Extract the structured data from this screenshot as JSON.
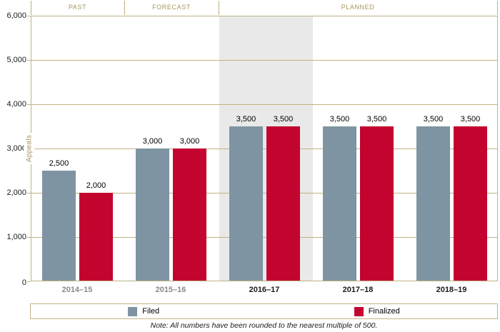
{
  "bands": [
    {
      "label": "PAST"
    },
    {
      "label": "FORECAST"
    },
    {
      "label": "PLANNED"
    }
  ],
  "y_axis": {
    "title": "Appeals",
    "ticks": [
      "6,000",
      "5,000",
      "4,000",
      "3,000",
      "2,000",
      "1,000",
      "0"
    ]
  },
  "legend": [
    {
      "label": "Filed",
      "color": "#7E94A2"
    },
    {
      "label": "Finalized",
      "color": "#C3042F"
    }
  ],
  "note": "Note: All numbers have been rounded to the nearest multiple of 500.",
  "colors": {
    "filed_bar": "#7E94A2",
    "finalized_bar": "#C3042F",
    "grid_and_border": "#BFB284",
    "band_text": "#A6965F",
    "highlight_shade": "#E9E9E9",
    "past_category_text": "#8A8A8A",
    "planned_category_text": "#1A1A1A"
  },
  "chart_data": {
    "type": "bar",
    "title": "",
    "categories": [
      "2014–15",
      "2015–16",
      "2016–17",
      "2017–18",
      "2018–19"
    ],
    "series": [
      {
        "name": "Filed",
        "color": "#7E94A2",
        "values": [
          2500,
          3000,
          3500,
          3500,
          3500
        ],
        "labels": [
          "2,500",
          "3,000",
          "3,500",
          "3,500",
          "3,500"
        ]
      },
      {
        "name": "Finalized",
        "color": "#C3042F",
        "values": [
          2000,
          3000,
          3500,
          3500,
          3500
        ],
        "labels": [
          "2,000",
          "3,000",
          "3,500",
          "3,500",
          "3,500"
        ]
      }
    ],
    "xlabel": "",
    "ylabel": "Appeals",
    "ylim": [
      0,
      6000
    ],
    "grid_interval": 1000,
    "grid": true,
    "legend_position": "bottom",
    "bands": [
      {
        "label": "PAST",
        "categories": [
          "2014–15"
        ]
      },
      {
        "label": "FORECAST",
        "categories": [
          "2015–16"
        ]
      },
      {
        "label": "PLANNED",
        "categories": [
          "2016–17",
          "2017–18",
          "2018–19"
        ]
      }
    ],
    "highlighted_category": "2016–17",
    "annotation": "Note: All numbers have been rounded to the nearest multiple of 500."
  }
}
